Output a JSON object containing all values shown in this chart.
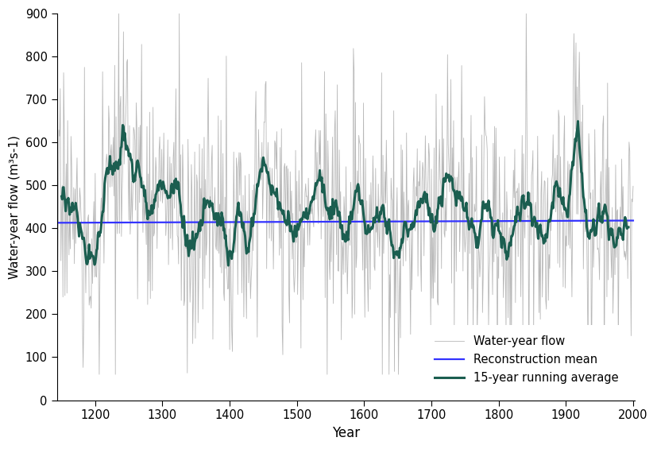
{
  "title": "",
  "xlabel": "Year",
  "ylabel": "Water-year flow (m³s-1)",
  "xlim": [
    1143,
    2002
  ],
  "ylim": [
    0,
    900
  ],
  "yticks": [
    0,
    100,
    200,
    300,
    400,
    500,
    600,
    700,
    800,
    900
  ],
  "xticks": [
    1200,
    1300,
    1400,
    1500,
    1600,
    1700,
    1800,
    1900,
    2000
  ],
  "year_start": 1143,
  "year_end": 2000,
  "reconstruction_mean": 413,
  "mean_slope": 0.006,
  "raw_color": "#b8b8b8",
  "running_avg_color": "#1b5e50",
  "mean_color": "#3333ff",
  "raw_linewidth": 0.6,
  "running_avg_linewidth": 2.2,
  "mean_linewidth": 1.6,
  "legend_labels": [
    "Water-year flow",
    "15-year running average",
    "Reconstruction mean"
  ],
  "seed": 17,
  "base_mean": 415,
  "base_std": 130,
  "window": 15,
  "decadal_periods": [
    {
      "start": 1143,
      "end": 1175,
      "mean": 480
    },
    {
      "start": 1175,
      "end": 1200,
      "mean": 340
    },
    {
      "start": 1200,
      "end": 1215,
      "mean": 400
    },
    {
      "start": 1215,
      "end": 1235,
      "mean": 490
    },
    {
      "start": 1235,
      "end": 1260,
      "mean": 570
    },
    {
      "start": 1260,
      "end": 1285,
      "mean": 500
    },
    {
      "start": 1285,
      "end": 1310,
      "mean": 460
    },
    {
      "start": 1310,
      "end": 1330,
      "mean": 540
    },
    {
      "start": 1330,
      "end": 1355,
      "mean": 340
    },
    {
      "start": 1355,
      "end": 1385,
      "mean": 430
    },
    {
      "start": 1385,
      "end": 1410,
      "mean": 390
    },
    {
      "start": 1410,
      "end": 1440,
      "mean": 450
    },
    {
      "start": 1440,
      "end": 1465,
      "mean": 530
    },
    {
      "start": 1465,
      "end": 1490,
      "mean": 450
    },
    {
      "start": 1490,
      "end": 1520,
      "mean": 435
    },
    {
      "start": 1520,
      "end": 1545,
      "mean": 460
    },
    {
      "start": 1545,
      "end": 1580,
      "mean": 415
    },
    {
      "start": 1580,
      "end": 1610,
      "mean": 400
    },
    {
      "start": 1610,
      "end": 1640,
      "mean": 425
    },
    {
      "start": 1640,
      "end": 1660,
      "mean": 380
    },
    {
      "start": 1660,
      "end": 1690,
      "mean": 400
    },
    {
      "start": 1690,
      "end": 1720,
      "mean": 420
    },
    {
      "start": 1720,
      "end": 1745,
      "mean": 500
    },
    {
      "start": 1745,
      "end": 1775,
      "mean": 380
    },
    {
      "start": 1775,
      "end": 1800,
      "mean": 420
    },
    {
      "start": 1800,
      "end": 1825,
      "mean": 400
    },
    {
      "start": 1825,
      "end": 1855,
      "mean": 430
    },
    {
      "start": 1855,
      "end": 1885,
      "mean": 450
    },
    {
      "start": 1885,
      "end": 1905,
      "mean": 490
    },
    {
      "start": 1905,
      "end": 1925,
      "mean": 560
    },
    {
      "start": 1925,
      "end": 1950,
      "mean": 430
    },
    {
      "start": 1950,
      "end": 1970,
      "mean": 400
    },
    {
      "start": 1970,
      "end": 2001,
      "mean": 390
    }
  ]
}
